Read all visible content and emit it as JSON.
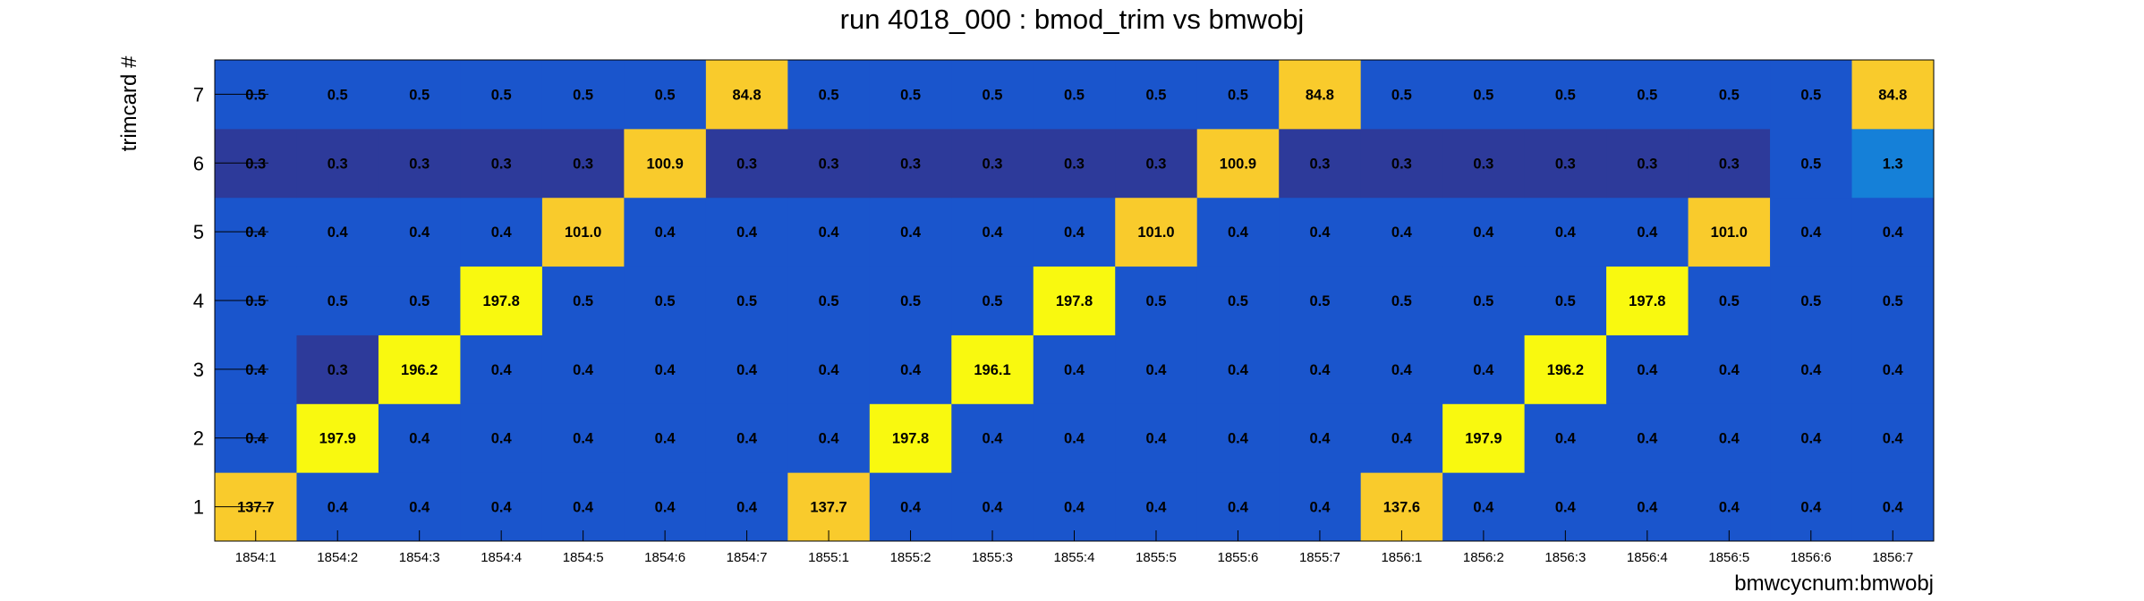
{
  "chart_data": {
    "type": "heatmap",
    "title": "run 4018_000 : bmod_trim vs bmwobj",
    "xlabel": "bmwcycnum:bmwobj",
    "ylabel": "trimcard #",
    "x_categories": [
      "1854:1",
      "1854:2",
      "1854:3",
      "1854:4",
      "1854:5",
      "1854:6",
      "1854:7",
      "1855:1",
      "1855:2",
      "1855:3",
      "1855:4",
      "1855:5",
      "1855:6",
      "1855:7",
      "1856:1",
      "1856:2",
      "1856:3",
      "1856:4",
      "1856:5",
      "1856:6",
      "1856:7"
    ],
    "y_categories": [
      "1",
      "2",
      "3",
      "4",
      "5",
      "6",
      "7"
    ],
    "values": [
      [
        137.7,
        0.4,
        0.4,
        0.4,
        0.4,
        0.4,
        0.4,
        137.7,
        0.4,
        0.4,
        0.4,
        0.4,
        0.4,
        0.4,
        137.6,
        0.4,
        0.4,
        0.4,
        0.4,
        0.4,
        0.4
      ],
      [
        0.4,
        197.9,
        0.4,
        0.4,
        0.4,
        0.4,
        0.4,
        0.4,
        197.8,
        0.4,
        0.4,
        0.4,
        0.4,
        0.4,
        0.4,
        197.9,
        0.4,
        0.4,
        0.4,
        0.4,
        0.4
      ],
      [
        0.4,
        0.3,
        196.2,
        0.4,
        0.4,
        0.4,
        0.4,
        0.4,
        0.4,
        196.1,
        0.4,
        0.4,
        0.4,
        0.4,
        0.4,
        0.4,
        196.2,
        0.4,
        0.4,
        0.4,
        0.4
      ],
      [
        0.5,
        0.5,
        0.5,
        197.8,
        0.5,
        0.5,
        0.5,
        0.5,
        0.5,
        0.5,
        197.8,
        0.5,
        0.5,
        0.5,
        0.5,
        0.5,
        0.5,
        197.8,
        0.5,
        0.5,
        0.5
      ],
      [
        0.4,
        0.4,
        0.4,
        0.4,
        101.0,
        0.4,
        0.4,
        0.4,
        0.4,
        0.4,
        0.4,
        101.0,
        0.4,
        0.4,
        0.4,
        0.4,
        0.4,
        0.4,
        101.0,
        0.4,
        0.4
      ],
      [
        0.3,
        0.3,
        0.3,
        0.3,
        0.3,
        100.9,
        0.3,
        0.3,
        0.3,
        0.3,
        0.3,
        0.3,
        100.9,
        0.3,
        0.3,
        0.3,
        0.3,
        0.3,
        0.3,
        0.5,
        1.3
      ],
      [
        0.5,
        0.5,
        0.5,
        0.5,
        0.5,
        0.5,
        84.8,
        0.5,
        0.5,
        0.5,
        0.5,
        0.5,
        0.5,
        84.8,
        0.5,
        0.5,
        0.5,
        0.5,
        0.5,
        0.5,
        84.8
      ]
    ],
    "value_format": "one decimal place",
    "colors": {
      "low_dark": "#2d3a9a",
      "low": "#1a55cc",
      "mid": "#1580d8",
      "high_amber": "#f9cb2c",
      "max_yellow": "#f9f90f"
    },
    "grid": false
  }
}
